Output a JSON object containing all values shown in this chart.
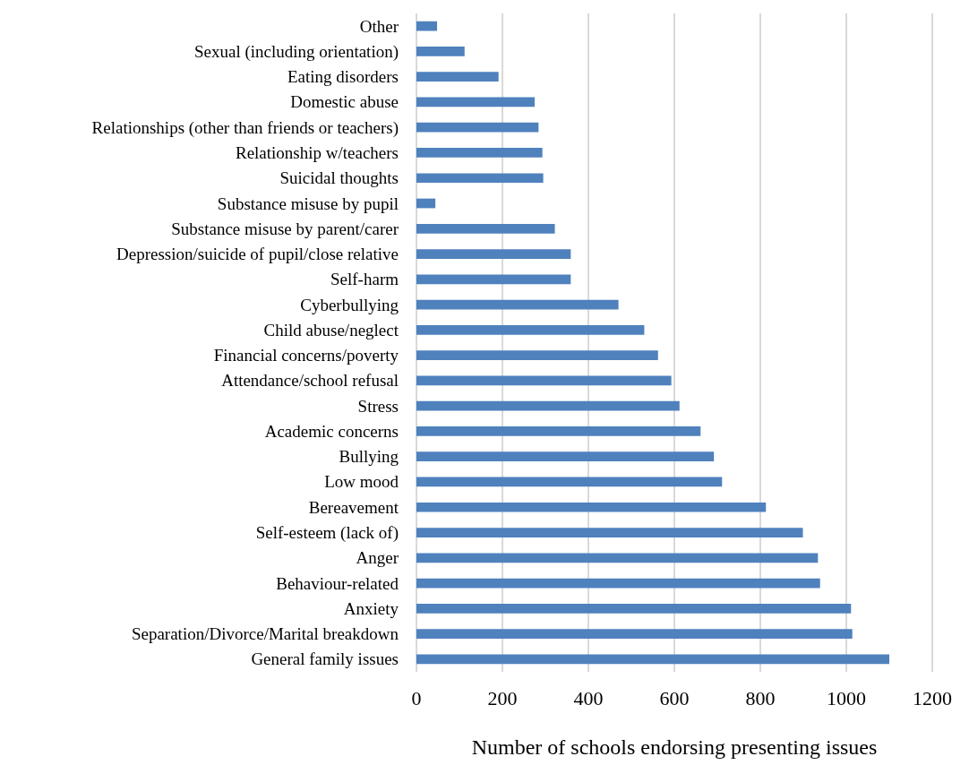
{
  "chart_data": {
    "type": "bar",
    "orientation": "horizontal",
    "xlabel": "Number of schools endorsing presenting issues",
    "categories": [
      "Other",
      "Sexual (including orientation)",
      "Eating disorders",
      "Domestic abuse",
      "Relationships (other than friends or teachers)",
      "Relationship w/teachers",
      "Suicidal thoughts",
      "Substance misuse by pupil",
      "Substance misuse by parent/carer",
      "Depression/suicide of pupil/close relative",
      "Self-harm",
      "Cyberbullying",
      "Child abuse/neglect",
      "Financial concerns/poverty",
      "Attendance/school refusal",
      "Stress",
      "Academic concerns",
      "Bullying",
      "Low mood",
      "Bereavement",
      "Self-esteem (lack of)",
      "Anger",
      "Behaviour-related",
      "Anxiety",
      "Separation/Divorce/Marital breakdown",
      "General family issues"
    ],
    "values": [
      48,
      112,
      191,
      275,
      284,
      293,
      295,
      44,
      322,
      359,
      359,
      470,
      530,
      562,
      593,
      612,
      661,
      692,
      711,
      813,
      899,
      934,
      939,
      1011,
      1014,
      1100
    ],
    "color": "#4f81bd",
    "xlim": [
      0,
      1200
    ],
    "xticks": [
      0,
      200,
      400,
      600,
      800,
      1000,
      1200
    ],
    "grid": "x"
  }
}
